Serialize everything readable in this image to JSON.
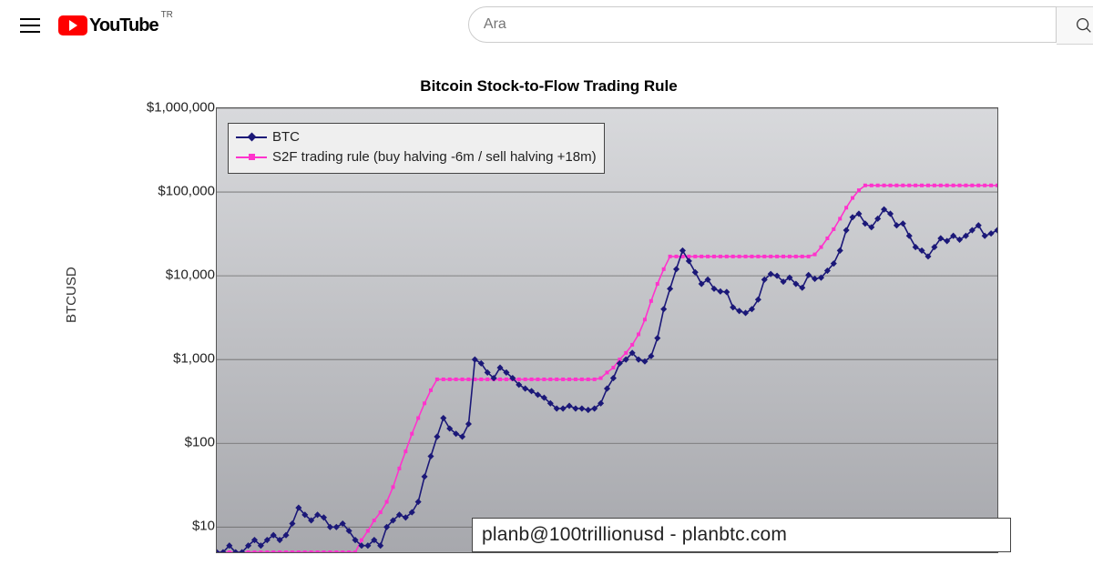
{
  "header": {
    "region_code": "TR",
    "logo_text": "YouTube",
    "search_placeholder": "Ara"
  },
  "chart": {
    "type": "line",
    "title": "Bitcoin Stock-to-Flow Trading Rule",
    "ylabel": "BTCUSD",
    "yscale": "log",
    "ylim": [
      5,
      1000000
    ],
    "ytick_values": [
      10,
      100,
      1000,
      10000,
      100000,
      1000000
    ],
    "ytick_labels": [
      "$10",
      "$100",
      "$1,000",
      "$10,000",
      "$100,000",
      "$1,000,000"
    ],
    "background_gradient": [
      "#d8d9dc",
      "#a7a8ad"
    ],
    "grid_color": "#6b6b6b",
    "border_color": "#555555",
    "legend": {
      "position": "upper-left",
      "bg": "#efefef",
      "items": [
        {
          "label": "BTC",
          "color": "#1b1878",
          "marker": "diamond"
        },
        {
          "label": "S2F trading rule (buy halving -6m / sell halving +18m)",
          "color": "#ff33cc",
          "marker": "square"
        }
      ]
    },
    "colors": {
      "btc": "#1b1878",
      "s2f": "#ff33cc"
    },
    "line_width": 1.6,
    "marker_size": 5,
    "series": {
      "btc": [
        5,
        5,
        6,
        5,
        5,
        6,
        7,
        6,
        7,
        8,
        7,
        8,
        11,
        17,
        14,
        12,
        14,
        13,
        10,
        10,
        11,
        9,
        7,
        6,
        6,
        7,
        6,
        10,
        12,
        14,
        13,
        15,
        20,
        40,
        70,
        120,
        200,
        150,
        130,
        120,
        170,
        1000,
        900,
        700,
        600,
        800,
        700,
        600,
        500,
        450,
        420,
        380,
        350,
        300,
        260,
        260,
        280,
        260,
        260,
        250,
        260,
        300,
        450,
        600,
        900,
        1000,
        1200,
        1000,
        950,
        1100,
        1800,
        4000,
        7000,
        12000,
        20000,
        15000,
        11000,
        8000,
        9000,
        7000,
        6500,
        6400,
        4200,
        3800,
        3600,
        4000,
        5200,
        9000,
        10500,
        10000,
        8500,
        9500,
        8000,
        7200,
        10200,
        9200,
        9500,
        11500,
        14000,
        20000,
        35000,
        50000,
        55000,
        42000,
        38000,
        48000,
        62000,
        55000,
        40000,
        42000,
        30000,
        22000,
        20000,
        17000,
        22000,
        28000,
        26000,
        30000,
        27000,
        30000,
        35000,
        40000,
        30000,
        32000,
        35000
      ],
      "s2f": [
        5,
        5,
        5,
        5,
        5,
        5,
        5,
        5,
        5,
        5,
        5,
        5,
        5,
        5,
        5,
        5,
        5,
        5,
        5,
        5,
        5,
        5,
        5,
        7,
        9,
        12,
        15,
        20,
        30,
        50,
        80,
        130,
        200,
        300,
        430,
        580,
        580,
        580,
        580,
        580,
        580,
        580,
        580,
        580,
        580,
        580,
        580,
        580,
        580,
        580,
        580,
        580,
        580,
        580,
        580,
        580,
        580,
        580,
        580,
        580,
        580,
        600,
        700,
        800,
        1000,
        1200,
        1500,
        2000,
        3000,
        5000,
        8000,
        12000,
        17000,
        17000,
        17000,
        17000,
        17000,
        17000,
        17000,
        17000,
        17000,
        17000,
        17000,
        17000,
        17000,
        17000,
        17000,
        17000,
        17000,
        17000,
        17000,
        17000,
        17000,
        17000,
        17000,
        18000,
        22000,
        28000,
        36000,
        48000,
        65000,
        85000,
        105000,
        120000,
        120000,
        120000,
        120000,
        120000,
        120000,
        120000,
        120000,
        120000,
        120000,
        120000,
        120000,
        120000,
        120000,
        120000,
        120000,
        120000,
        120000,
        120000,
        120000,
        120000,
        120000
      ]
    },
    "watermark": "planb@100trillionusd  -  planbtc.com"
  }
}
